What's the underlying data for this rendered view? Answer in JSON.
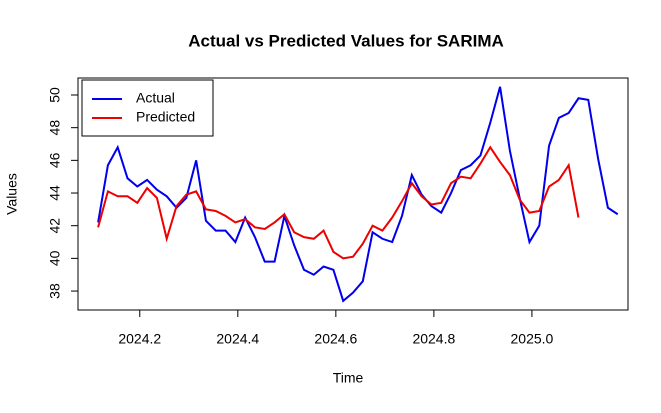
{
  "chart_data": {
    "type": "line",
    "title": "Actual vs Predicted Values for SARIMA",
    "xlabel": "Time",
    "ylabel": "Values",
    "x": [
      2024.115,
      2024.135,
      2024.155,
      2024.175,
      2024.195,
      2024.215,
      2024.235,
      2024.255,
      2024.275,
      2024.295,
      2024.315,
      2024.335,
      2024.355,
      2024.375,
      2024.395,
      2024.415,
      2024.435,
      2024.455,
      2024.475,
      2024.495,
      2024.515,
      2024.535,
      2024.555,
      2024.575,
      2024.595,
      2024.615,
      2024.635,
      2024.655,
      2024.675,
      2024.695,
      2024.715,
      2024.735,
      2024.755,
      2024.775,
      2024.795,
      2024.815,
      2024.835,
      2024.855,
      2024.875,
      2024.895,
      2024.915,
      2024.935,
      2024.955,
      2024.975,
      2024.995,
      2025.015,
      2025.035,
      2025.055,
      2025.075,
      2025.095,
      2025.115,
      2025.135,
      2025.155,
      2025.175
    ],
    "series": [
      {
        "name": "Actual",
        "color": "#0000ee",
        "values": [
          42.2,
          45.7,
          46.8,
          44.9,
          44.4,
          44.8,
          44.2,
          43.8,
          43.1,
          43.7,
          46.0,
          42.3,
          41.7,
          41.7,
          41.0,
          42.5,
          41.3,
          39.8,
          39.8,
          42.6,
          40.8,
          39.3,
          39.0,
          39.5,
          39.3,
          37.4,
          37.9,
          38.6,
          41.6,
          41.2,
          41.0,
          42.6,
          45.1,
          43.9,
          43.2,
          42.8,
          44.0,
          45.4,
          45.7,
          46.3,
          48.3,
          50.5,
          46.6,
          43.7,
          41.0,
          42.0,
          46.9,
          48.6,
          48.9,
          49.8,
          49.7,
          46.1,
          43.1,
          42.7
        ]
      },
      {
        "name": "Predicted",
        "color": "#ee0000",
        "values": [
          41.9,
          44.1,
          43.8,
          43.8,
          43.4,
          44.3,
          43.7,
          41.2,
          43.2,
          43.9,
          44.1,
          43.0,
          42.9,
          42.6,
          42.2,
          42.4,
          41.9,
          41.8,
          42.2,
          42.7,
          41.6,
          41.3,
          41.2,
          41.7,
          40.4,
          40.0,
          40.1,
          40.9,
          42.0,
          41.7,
          42.5,
          43.5,
          44.6,
          43.8,
          43.3,
          43.4,
          44.6,
          45.0,
          44.9,
          45.8,
          46.8,
          45.9,
          45.1,
          43.6,
          42.8,
          42.9,
          44.4,
          44.8,
          45.7,
          42.5,
          null,
          null,
          null,
          null
        ]
      }
    ],
    "xlim": [
      2024.074,
      2025.196
    ],
    "ylim": [
      36.84,
      51.04
    ],
    "xticks": [
      2024.2,
      2024.4,
      2024.6,
      2024.8,
      {
        "value": 2025.0,
        "label": "2025.0"
      }
    ],
    "yticks": [
      38,
      40,
      42,
      44,
      46,
      48,
      50
    ],
    "legend": "topleft"
  }
}
